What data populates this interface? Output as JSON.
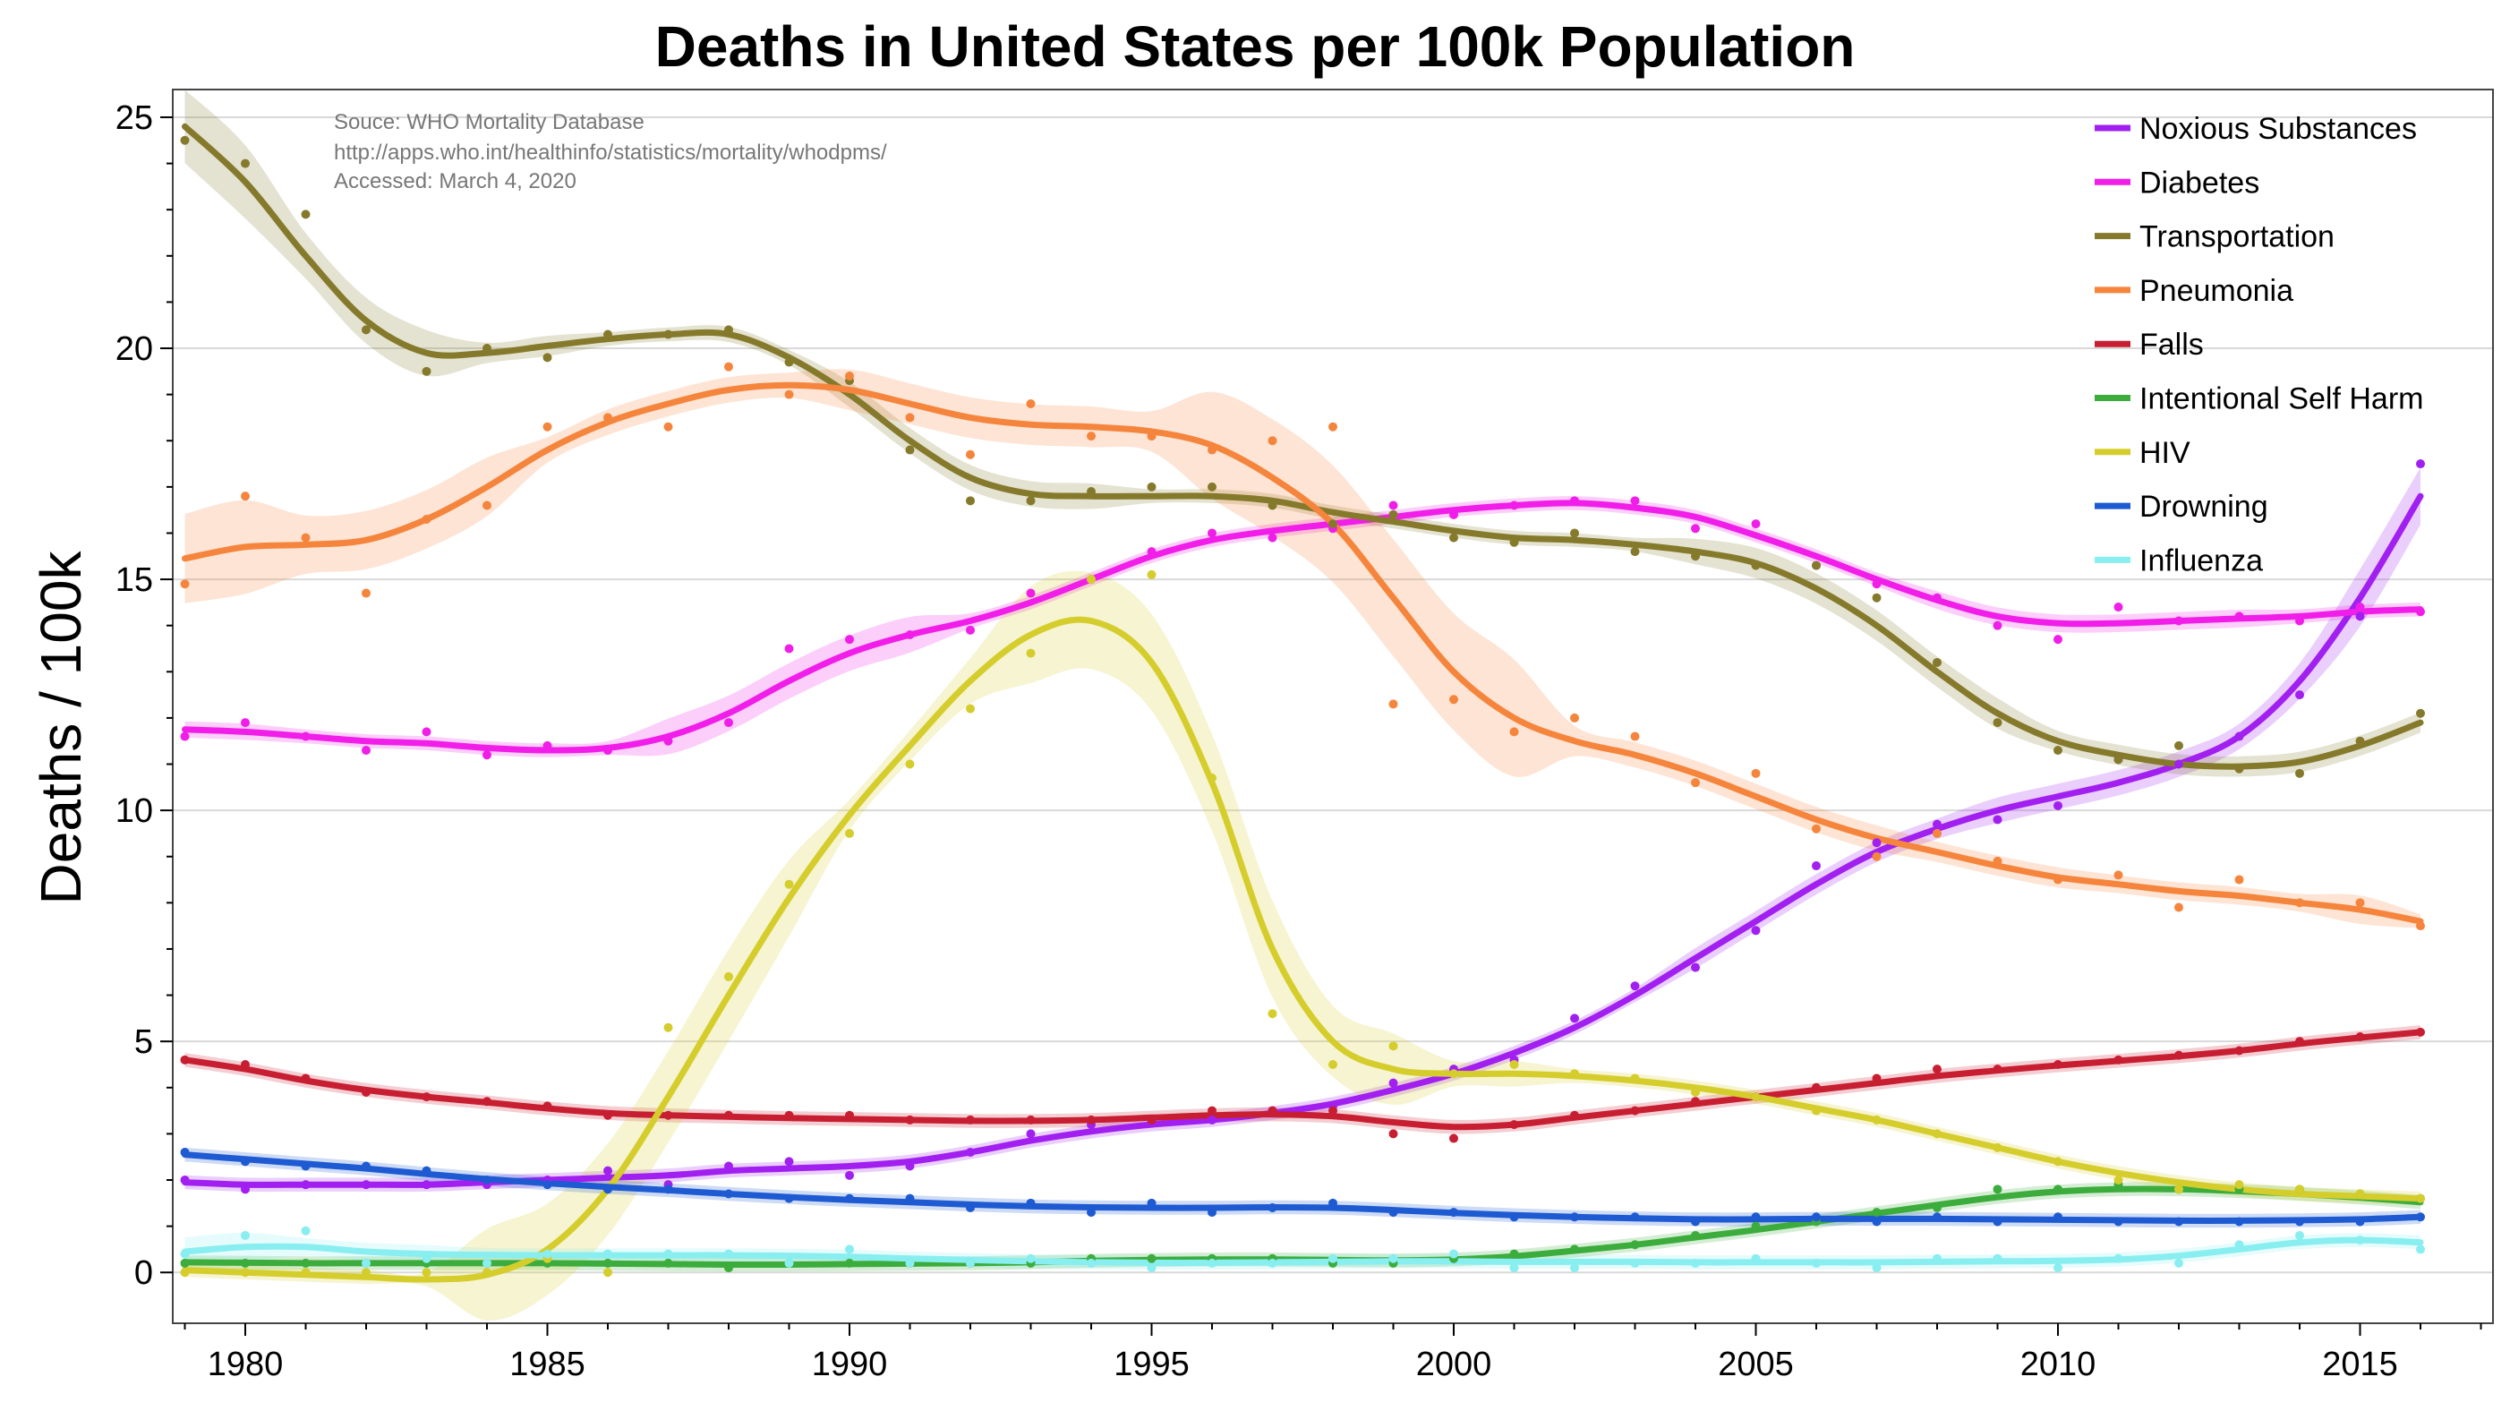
{
  "chart_data": {
    "type": "line",
    "title": "Deaths in United States per 100k Population",
    "ylabel": "Deaths / 100k",
    "xlabel": "",
    "xlim": [
      1978.8,
      2017.2
    ],
    "ylim": [
      -1.1,
      25.6
    ],
    "x_ticks": [
      1980,
      1985,
      1990,
      1995,
      2000,
      2005,
      2010,
      2015
    ],
    "y_ticks": [
      0,
      5,
      10,
      15,
      20,
      25
    ],
    "grid": true,
    "legend_position": "top-right",
    "source_note": [
      "Souce: WHO Mortality Database",
      "http://apps.who.int/healthinfo/statistics/mortality/whodpms/",
      "Accessed: March 4, 2020"
    ],
    "years": [
      1979,
      1980,
      1981,
      1982,
      1983,
      1984,
      1985,
      1986,
      1987,
      1988,
      1989,
      1990,
      1991,
      1992,
      1993,
      1994,
      1995,
      1996,
      1997,
      1998,
      1999,
      2000,
      2001,
      2002,
      2003,
      2004,
      2005,
      2006,
      2007,
      2008,
      2009,
      2010,
      2011,
      2012,
      2013,
      2014,
      2015,
      2016
    ],
    "series": [
      {
        "name": "Noxious Substances",
        "color": "#a120f0",
        "points": [
          2.0,
          1.8,
          1.9,
          1.9,
          1.9,
          1.9,
          2.0,
          2.2,
          1.9,
          2.3,
          2.4,
          2.1,
          2.3,
          2.6,
          3.0,
          3.2,
          3.3,
          3.3,
          3.5,
          3.6,
          4.1,
          4.4,
          4.6,
          5.5,
          6.2,
          6.6,
          7.4,
          8.8,
          9.3,
          9.7,
          9.8,
          10.1,
          11.1,
          11.0,
          11.6,
          12.5,
          14.2,
          17.5
        ],
        "smooth": [
          1.95,
          1.9,
          1.9,
          1.9,
          1.9,
          1.95,
          2.0,
          2.05,
          2.1,
          2.2,
          2.25,
          2.3,
          2.4,
          2.6,
          2.85,
          3.05,
          3.2,
          3.3,
          3.45,
          3.65,
          3.95,
          4.3,
          4.75,
          5.3,
          6.0,
          6.8,
          7.6,
          8.4,
          9.1,
          9.6,
          10.0,
          10.3,
          10.6,
          11.0,
          11.6,
          12.8,
          14.6,
          16.8
        ]
      },
      {
        "name": "Diabetes",
        "color": "#f01ee8",
        "points": [
          11.6,
          11.9,
          11.6,
          11.3,
          11.7,
          11.2,
          11.4,
          11.3,
          11.5,
          11.9,
          13.5,
          13.7,
          13.8,
          13.9,
          14.7,
          15.0,
          15.6,
          16.0,
          15.9,
          16.1,
          16.6,
          16.4,
          16.6,
          16.7,
          16.7,
          16.1,
          16.2,
          15.3,
          14.9,
          14.6,
          14.0,
          13.7,
          14.4,
          14.1,
          14.2,
          14.1,
          14.4,
          14.3
        ],
        "smooth": [
          11.75,
          11.7,
          11.6,
          11.5,
          11.45,
          11.35,
          11.3,
          11.35,
          11.6,
          12.1,
          12.8,
          13.4,
          13.8,
          14.1,
          14.5,
          15.0,
          15.5,
          15.85,
          16.05,
          16.2,
          16.35,
          16.5,
          16.6,
          16.65,
          16.55,
          16.35,
          15.95,
          15.5,
          15.0,
          14.55,
          14.2,
          14.05,
          14.05,
          14.1,
          14.15,
          14.2,
          14.3,
          14.35
        ]
      },
      {
        "name": "Transportation",
        "color": "#857a2c",
        "points": [
          24.5,
          24.0,
          22.9,
          20.4,
          19.5,
          20.0,
          19.8,
          20.3,
          20.3,
          20.4,
          19.7,
          19.3,
          17.8,
          16.7,
          16.7,
          16.9,
          17.0,
          17.0,
          16.6,
          16.2,
          16.4,
          15.9,
          15.8,
          16.0,
          15.6,
          15.5,
          15.3,
          15.3,
          14.6,
          13.2,
          11.9,
          11.3,
          11.1,
          11.4,
          10.9,
          10.8,
          11.5,
          12.1
        ],
        "smooth": [
          24.8,
          23.6,
          22.0,
          20.6,
          19.9,
          19.9,
          20.05,
          20.2,
          20.3,
          20.3,
          19.8,
          19.0,
          18.0,
          17.2,
          16.85,
          16.8,
          16.8,
          16.8,
          16.7,
          16.45,
          16.25,
          16.05,
          15.9,
          15.85,
          15.75,
          15.6,
          15.35,
          14.8,
          14.0,
          13.0,
          12.1,
          11.5,
          11.2,
          11.0,
          10.95,
          11.05,
          11.4,
          11.9
        ]
      },
      {
        "name": "Pneumonia",
        "color": "#f5853c",
        "points": [
          14.9,
          16.8,
          15.9,
          14.7,
          16.3,
          16.6,
          18.3,
          18.5,
          18.3,
          19.6,
          19.0,
          19.4,
          18.5,
          17.7,
          18.8,
          18.1,
          18.1,
          17.8,
          18.0,
          18.3,
          12.3,
          12.4,
          11.7,
          12.0,
          11.6,
          10.6,
          10.8,
          9.6,
          9.0,
          9.5,
          8.9,
          8.5,
          8.6,
          7.9,
          8.5,
          8.0,
          8.0,
          7.5
        ],
        "smooth": [
          15.45,
          15.7,
          15.75,
          15.85,
          16.3,
          17.0,
          17.8,
          18.4,
          18.8,
          19.1,
          19.2,
          19.1,
          18.8,
          18.5,
          18.35,
          18.3,
          18.2,
          17.9,
          17.2,
          16.2,
          14.6,
          13.0,
          12.0,
          11.5,
          11.2,
          10.8,
          10.3,
          9.8,
          9.4,
          9.1,
          8.8,
          8.55,
          8.4,
          8.25,
          8.15,
          8.0,
          7.85,
          7.6
        ]
      },
      {
        "name": "Falls",
        "color": "#c81e32",
        "points": [
          4.6,
          4.5,
          4.2,
          3.9,
          3.8,
          3.7,
          3.6,
          3.4,
          3.4,
          3.4,
          3.4,
          3.4,
          3.3,
          3.3,
          3.3,
          3.3,
          3.3,
          3.5,
          3.5,
          3.5,
          3.0,
          2.9,
          3.2,
          3.4,
          3.5,
          3.7,
          3.8,
          4.0,
          4.2,
          4.4,
          4.4,
          4.5,
          4.6,
          4.7,
          4.8,
          5.0,
          5.1,
          5.2
        ],
        "smooth": [
          4.6,
          4.4,
          4.15,
          3.95,
          3.8,
          3.68,
          3.55,
          3.45,
          3.4,
          3.37,
          3.34,
          3.32,
          3.3,
          3.28,
          3.28,
          3.3,
          3.35,
          3.4,
          3.42,
          3.38,
          3.25,
          3.15,
          3.2,
          3.35,
          3.5,
          3.65,
          3.8,
          3.95,
          4.1,
          4.25,
          4.37,
          4.48,
          4.58,
          4.68,
          4.8,
          4.95,
          5.08,
          5.2
        ]
      },
      {
        "name": "Intentional Self Harm",
        "color": "#3cac3c",
        "points": [
          0.2,
          0.2,
          0.2,
          0.2,
          0.2,
          0.2,
          0.2,
          0.2,
          0.2,
          0.1,
          0.2,
          0.2,
          0.2,
          0.2,
          0.2,
          0.3,
          0.3,
          0.3,
          0.3,
          0.2,
          0.2,
          0.3,
          0.4,
          0.5,
          0.6,
          0.8,
          1.0,
          1.1,
          1.3,
          1.4,
          1.8,
          1.8,
          1.9,
          1.8,
          1.8,
          1.8,
          1.7,
          1.6
        ],
        "smooth": [
          0.22,
          0.21,
          0.2,
          0.2,
          0.2,
          0.2,
          0.2,
          0.19,
          0.18,
          0.17,
          0.17,
          0.18,
          0.19,
          0.2,
          0.22,
          0.25,
          0.27,
          0.28,
          0.28,
          0.27,
          0.26,
          0.28,
          0.35,
          0.47,
          0.6,
          0.76,
          0.92,
          1.1,
          1.28,
          1.46,
          1.63,
          1.75,
          1.8,
          1.8,
          1.76,
          1.7,
          1.62,
          1.52
        ]
      },
      {
        "name": "HIV",
        "color": "#d5cd2c",
        "points": [
          0.0,
          0.0,
          0.0,
          0.0,
          0.0,
          0.0,
          0.3,
          0.0,
          5.3,
          6.4,
          8.4,
          9.5,
          11.0,
          12.2,
          13.4,
          15.0,
          15.1,
          10.7,
          5.6,
          4.5,
          4.9,
          4.3,
          4.5,
          4.3,
          4.2,
          3.9,
          3.8,
          3.5,
          3.3,
          3.0,
          2.7,
          2.4,
          2.0,
          1.8,
          1.9,
          1.8,
          1.7,
          1.6
        ],
        "smooth": [
          0.05,
          0.0,
          -0.05,
          -0.1,
          -0.15,
          -0.05,
          0.5,
          1.8,
          3.8,
          6.0,
          8.1,
          9.9,
          11.4,
          12.8,
          13.8,
          14.1,
          13.2,
          10.6,
          7.0,
          5.0,
          4.4,
          4.3,
          4.3,
          4.25,
          4.15,
          4.0,
          3.8,
          3.55,
          3.3,
          3.0,
          2.7,
          2.4,
          2.15,
          1.95,
          1.8,
          1.7,
          1.65,
          1.6
        ]
      },
      {
        "name": "Drowning",
        "color": "#1e5ad2",
        "points": [
          2.6,
          2.4,
          2.3,
          2.3,
          2.2,
          2.0,
          1.9,
          1.8,
          1.8,
          1.7,
          1.6,
          1.6,
          1.6,
          1.4,
          1.5,
          1.3,
          1.5,
          1.3,
          1.4,
          1.5,
          1.3,
          1.3,
          1.2,
          1.2,
          1.2,
          1.1,
          1.2,
          1.2,
          1.1,
          1.2,
          1.1,
          1.2,
          1.1,
          1.1,
          1.1,
          1.1,
          1.1,
          1.2
        ],
        "smooth": [
          2.55,
          2.45,
          2.35,
          2.25,
          2.13,
          2.02,
          1.93,
          1.85,
          1.78,
          1.7,
          1.63,
          1.57,
          1.52,
          1.47,
          1.43,
          1.41,
          1.4,
          1.4,
          1.41,
          1.4,
          1.35,
          1.29,
          1.24,
          1.2,
          1.17,
          1.15,
          1.15,
          1.16,
          1.16,
          1.16,
          1.15,
          1.14,
          1.13,
          1.12,
          1.12,
          1.13,
          1.15,
          1.2
        ]
      },
      {
        "name": "Influenza",
        "color": "#88eef0",
        "points": [
          0.4,
          0.8,
          0.9,
          0.2,
          0.3,
          0.2,
          0.4,
          0.4,
          0.4,
          0.4,
          0.2,
          0.5,
          0.2,
          0.2,
          0.3,
          0.2,
          0.1,
          0.2,
          0.2,
          0.3,
          0.3,
          0.4,
          0.1,
          0.1,
          0.2,
          0.2,
          0.3,
          0.2,
          0.1,
          0.3,
          0.3,
          0.1,
          0.3,
          0.2,
          0.6,
          0.8,
          0.7,
          0.5
        ],
        "smooth": [
          0.45,
          0.55,
          0.55,
          0.45,
          0.4,
          0.38,
          0.37,
          0.37,
          0.37,
          0.37,
          0.36,
          0.34,
          0.3,
          0.27,
          0.24,
          0.22,
          0.21,
          0.21,
          0.22,
          0.23,
          0.24,
          0.24,
          0.23,
          0.23,
          0.23,
          0.22,
          0.22,
          0.22,
          0.22,
          0.23,
          0.24,
          0.25,
          0.28,
          0.36,
          0.5,
          0.65,
          0.7,
          0.65
        ]
      }
    ]
  }
}
